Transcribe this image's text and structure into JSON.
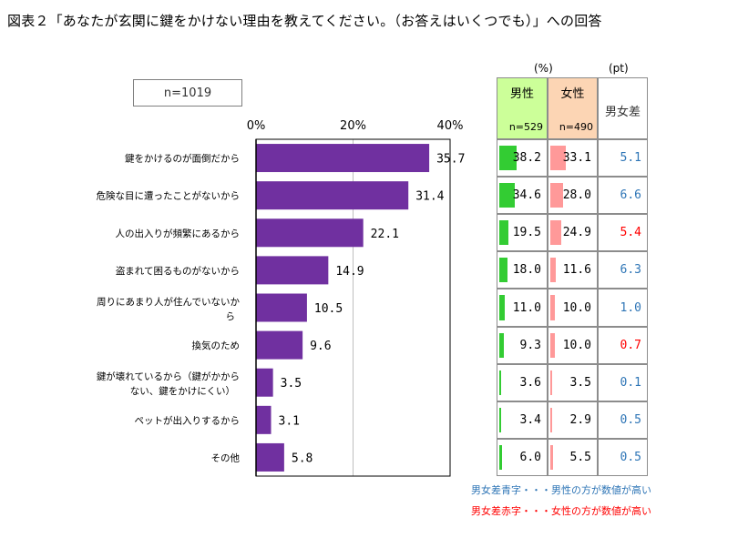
{
  "title": "図表２「あなたが玄関に鍵をかけない理由を教えてください。（お答えはいくつでも）」への回答",
  "n_label": "n=1019",
  "units": {
    "percent": "(%)",
    "pt": "(pt)"
  },
  "table_headers": {
    "male": "男性",
    "male_n": "n=529",
    "female": "女性",
    "female_n": "n=490",
    "diff": "男女差"
  },
  "notes": {
    "blue": "男女差青字・・・男性の方が数値が高い",
    "red": "男女差赤字・・・女性の方が数値が高い"
  },
  "colors": {
    "bar": "#7030a0",
    "male_bar": "#33cc33",
    "female_bar": "#ff9999",
    "male_header": "#ccff99",
    "female_header": "#fcd5b4",
    "blue": "#2e75b6",
    "red": "#ff0000"
  },
  "chart_data": {
    "type": "bar",
    "orientation": "horizontal",
    "xlim": [
      0,
      40
    ],
    "ticks": [
      "0%",
      "20%",
      "40%"
    ],
    "categories": [
      "鍵をかけるのが面倒だから",
      "危険な目に遭ったことがないから",
      "人の出入りが頻繁にあるから",
      "盗まれて困るものがないから",
      "周りにあまり人が住んでいないから",
      "換気のため",
      "鍵が壊れているから（鍵がかからない、鍵をかけにくい）",
      "ペットが出入りするから",
      "その他"
    ],
    "values": [
      35.7,
      31.4,
      22.1,
      14.9,
      10.5,
      9.6,
      3.5,
      3.1,
      5.8
    ],
    "male": [
      38.2,
      34.6,
      19.5,
      18.0,
      11.0,
      9.3,
      3.6,
      3.4,
      6.0
    ],
    "female": [
      33.1,
      28.0,
      24.9,
      11.6,
      10.0,
      10.0,
      3.5,
      2.9,
      5.5
    ],
    "diff": [
      5.1,
      6.6,
      5.4,
      6.3,
      1.0,
      0.7,
      0.1,
      0.5,
      0.5
    ],
    "diff_higher": [
      "male",
      "male",
      "female",
      "male",
      "male",
      "female",
      "male",
      "male",
      "male"
    ]
  }
}
